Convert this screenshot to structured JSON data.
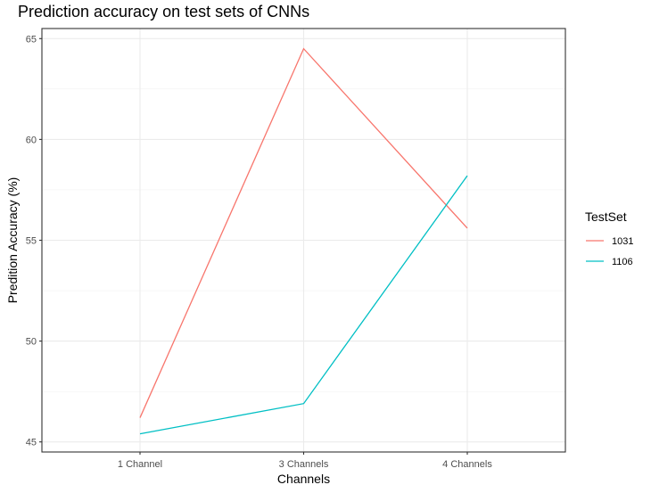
{
  "chart_data": {
    "type": "line",
    "title": "Prediction accuracy on test sets of CNNs",
    "xlabel": "Channels",
    "ylabel": "Predition Accuracy (%)",
    "categories": [
      "1 Channel",
      "3 Channels",
      "4 Channels"
    ],
    "ylim": [
      44.5,
      65.5
    ],
    "yticks": [
      45,
      50,
      55,
      60,
      65
    ],
    "grid": true,
    "legend": {
      "title": "TestSet",
      "placement": "right"
    },
    "series": [
      {
        "name": "1031",
        "color": "#F8766D",
        "values": [
          46.2,
          64.5,
          55.6
        ]
      },
      {
        "name": "1106",
        "color": "#00BFC4",
        "values": [
          45.4,
          46.9,
          58.2
        ]
      }
    ]
  }
}
